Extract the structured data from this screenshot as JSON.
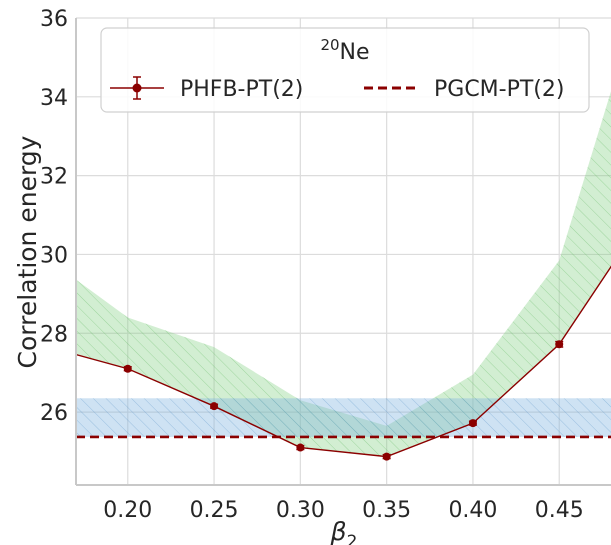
{
  "chart_data": {
    "type": "line",
    "title": "",
    "xlabel": "β",
    "xlabel_sub": "2",
    "ylabel": "Correlation energy",
    "xlim": [
      0.17,
      0.48
    ],
    "ylim": [
      24.15,
      36
    ],
    "xticks": [
      0.2,
      0.25,
      0.3,
      0.35,
      0.4,
      0.45
    ],
    "xtick_labels": [
      "0.20",
      "0.25",
      "0.30",
      "0.35",
      "0.40",
      "0.45"
    ],
    "yticks": [
      26,
      28,
      30,
      32,
      34,
      36
    ],
    "ytick_labels": [
      "26",
      "28",
      "30",
      "32",
      "34",
      "36"
    ],
    "grid": true,
    "legend": {
      "title_sup": "20",
      "title": "Ne",
      "placement": "top",
      "entries": [
        "PHFB-PT(2)",
        "PGCM-PT(2)"
      ]
    },
    "series": [
      {
        "name": "PHFB-PT(2)",
        "style": "line-with-markers-and-errorbars",
        "color": "#8b0000",
        "x": [
          0.15,
          0.2,
          0.25,
          0.3,
          0.35,
          0.4,
          0.45,
          0.5
        ],
        "y": [
          27.7,
          27.1,
          26.15,
          25.1,
          24.87,
          25.72,
          27.72,
          31.0
        ],
        "yerr": [
          0.05,
          0.05,
          0.05,
          0.05,
          0.05,
          0.05,
          0.07,
          0.08
        ]
      },
      {
        "name": "PGCM-PT(2)",
        "style": "dashed-horizontal",
        "color": "#8b0000",
        "y": 25.37
      }
    ],
    "bands": [
      {
        "label": "",
        "color": "#7fcf7f",
        "x": [
          0.15,
          0.2,
          0.25,
          0.3,
          0.35,
          0.4,
          0.45,
          0.5
        ],
        "lower": [
          27.7,
          27.1,
          26.15,
          25.1,
          24.87,
          25.72,
          27.72,
          31.0
        ],
        "upper": [
          30.0,
          28.4,
          27.65,
          26.3,
          25.65,
          26.95,
          29.85,
          37.0
        ]
      },
      {
        "label": "",
        "color": "#7fb4e0",
        "lower": 25.37,
        "upper": 26.35
      }
    ]
  }
}
